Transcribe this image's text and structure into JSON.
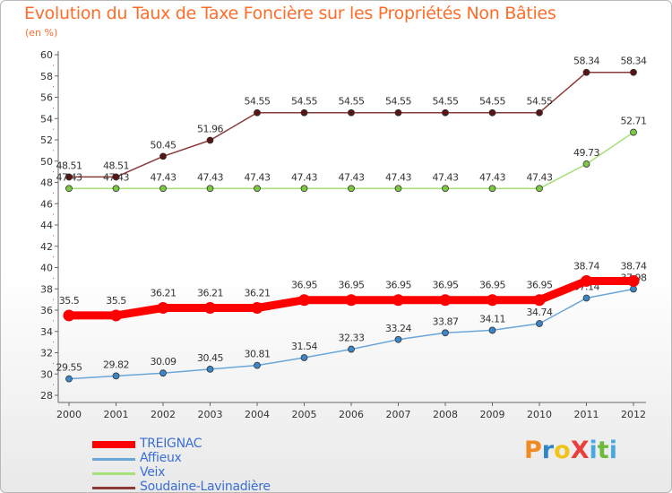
{
  "header": {
    "title": "Evolution du Taux de Taxe Foncière sur les Propriétés Non Bâties",
    "subtitle": "(en %)"
  },
  "logo": {
    "text": "ProXiti",
    "parts": [
      "P",
      "r",
      "o",
      "X",
      "i",
      "t",
      "i"
    ]
  },
  "chart_data": {
    "type": "line",
    "title": "Evolution du Taux de Taxe Foncière sur les Propriétés Non Bâties",
    "ylabel": "(en %)",
    "xlabel": "",
    "x": [
      "2000",
      "2001",
      "2002",
      "2003",
      "2004",
      "2005",
      "2006",
      "2007",
      "2008",
      "2009",
      "2010",
      "2011",
      "2012"
    ],
    "ylim": [
      28,
      60
    ],
    "yticks": [
      28,
      30,
      32,
      34,
      36,
      38,
      40,
      42,
      44,
      46,
      48,
      50,
      52,
      54,
      56,
      58,
      60
    ],
    "grid": false,
    "legend_position": "bottom-left",
    "series": [
      {
        "name": "Soudaine-Lavinadière",
        "color": "#8b3a3a",
        "marker_color": "#5a1414",
        "values": [
          48.51,
          48.51,
          50.45,
          51.96,
          54.55,
          54.55,
          54.55,
          54.55,
          54.55,
          54.55,
          54.55,
          58.34,
          58.34
        ],
        "labels": [
          "48.51",
          "48.51",
          "50.45",
          "51.96",
          "54.55",
          "54.55",
          "54.55",
          "54.55",
          "54.55",
          "54.55",
          "54.55",
          "58.34",
          "58.34"
        ]
      },
      {
        "name": "Veix",
        "color": "#a6e07a",
        "marker_color": "#7cc744",
        "values": [
          47.43,
          47.43,
          47.43,
          47.43,
          47.43,
          47.43,
          47.43,
          47.43,
          47.43,
          47.43,
          47.43,
          49.73,
          52.71
        ],
        "labels": [
          "47.43",
          "47.43",
          "47.43",
          "47.43",
          "47.43",
          "47.43",
          "47.43",
          "47.43",
          "47.43",
          "47.43",
          "47.43",
          "49.73",
          "52.71"
        ]
      },
      {
        "name": "Affieux",
        "color": "#6aa6d8",
        "marker_color": "#3c86c8",
        "values": [
          29.55,
          29.82,
          30.09,
          30.45,
          30.81,
          31.54,
          32.33,
          33.24,
          33.87,
          34.11,
          34.74,
          37.14,
          37.98
        ],
        "labels": [
          "29.55",
          "29.82",
          "30.09",
          "30.45",
          "30.81",
          "31.54",
          "32.33",
          "33.24",
          "33.87",
          "34.11",
          "34.74",
          "37.14",
          "37.98"
        ]
      },
      {
        "name": "TREIGNAC",
        "color": "#ff0000",
        "marker_color": "#ff0000",
        "values": [
          35.5,
          35.5,
          36.21,
          36.21,
          36.21,
          36.95,
          36.95,
          36.95,
          36.95,
          36.95,
          36.95,
          38.74,
          38.74
        ],
        "labels": [
          "35.5",
          "35.5",
          "36.21",
          "36.21",
          "36.21",
          "36.95",
          "36.95",
          "36.95",
          "36.95",
          "36.95",
          "36.95",
          "38.74",
          "38.74"
        ]
      }
    ],
    "legend_order": [
      "TREIGNAC",
      "Affieux",
      "Veix",
      "Soudaine-Lavinadière"
    ]
  }
}
